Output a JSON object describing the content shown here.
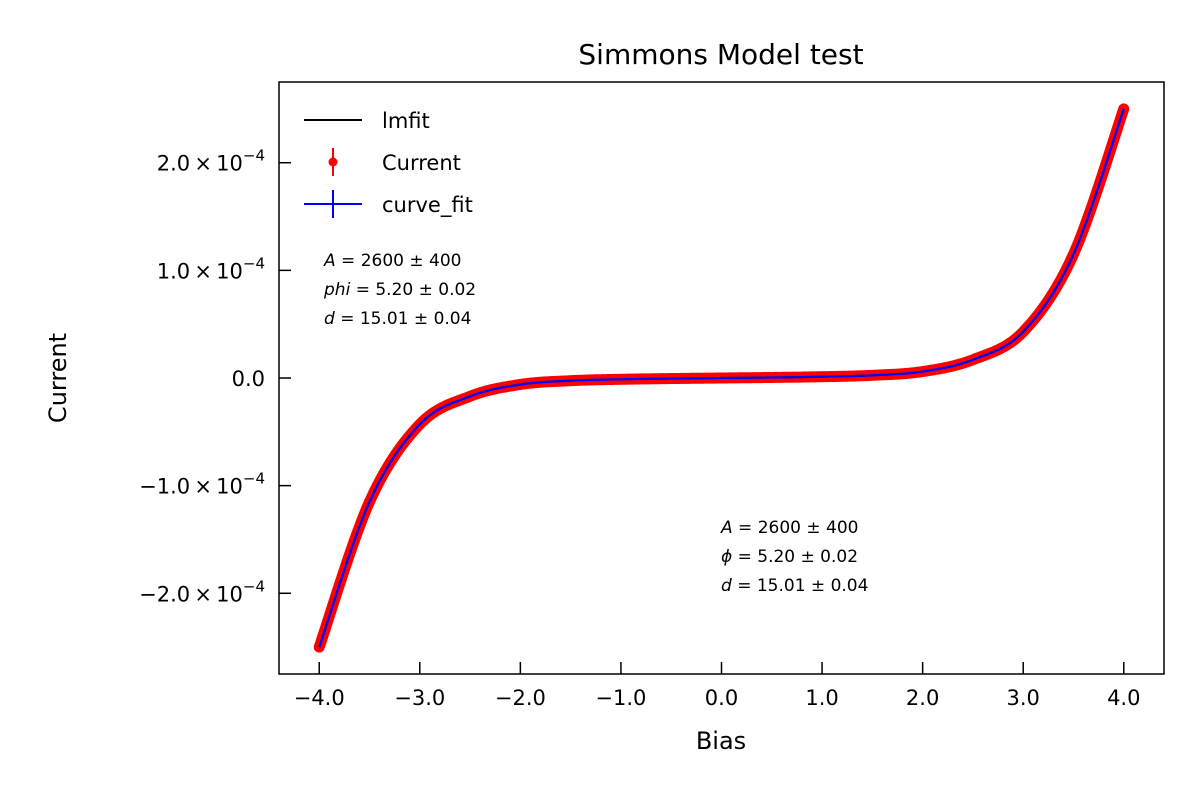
{
  "chart_data": {
    "type": "scatter",
    "title": "Simmons Model test",
    "xlabel": "Bias",
    "ylabel": "Current",
    "xlim": [
      -4.4,
      4.4
    ],
    "ylim": [
      -0.000275,
      0.000275
    ],
    "x_ticks": [
      -4.0,
      -3.0,
      -2.0,
      -1.0,
      0.0,
      1.0,
      2.0,
      3.0,
      4.0
    ],
    "x_tick_labels": [
      "−4.0",
      "−3.0",
      "−2.0",
      "−1.0",
      "0.0",
      "1.0",
      "2.0",
      "3.0",
      "4.0"
    ],
    "y_ticks": [
      -0.0002,
      -0.0001,
      0.0,
      0.0001,
      0.0002
    ],
    "y_tick_labels": [
      {
        "mant": "−2.0 × 10",
        "exp": "−4"
      },
      {
        "mant": "−1.0 × 10",
        "exp": "−4"
      },
      {
        "mant": "0.0",
        "exp": ""
      },
      {
        "mant": "1.0 × 10",
        "exp": "−4"
      },
      {
        "mant": "2.0 × 10",
        "exp": "−4"
      }
    ],
    "grid": false,
    "legend_position": "top-left",
    "series": [
      {
        "name": "lmfit",
        "color": "#000000",
        "style": "line",
        "x": [
          -4.0,
          -3.5,
          -3.0,
          -2.5,
          -2.0,
          -1.5,
          -1.0,
          -0.5,
          0.0,
          0.5,
          1.0,
          1.5,
          2.0,
          2.5,
          3.0,
          3.5,
          4.0
        ],
        "y": [
          -0.00025,
          -0.000115,
          -4.3e-05,
          -1.7e-05,
          -6e-06,
          -2.5e-06,
          -1.2e-06,
          -5e-07,
          0.0,
          5e-07,
          1.2e-06,
          2.5e-06,
          6e-06,
          1.7e-05,
          4.3e-05,
          0.000115,
          0.00025
        ]
      },
      {
        "name": "Current",
        "color": "#ff0000",
        "style": "errorbar-points",
        "x": [
          -4.0,
          -3.5,
          -3.0,
          -2.5,
          -2.0,
          -1.5,
          -1.0,
          -0.5,
          0.0,
          0.5,
          1.0,
          1.5,
          2.0,
          2.5,
          3.0,
          3.5,
          4.0
        ],
        "y": [
          -0.00025,
          -0.000115,
          -4.3e-05,
          -1.7e-05,
          -6e-06,
          -2.5e-06,
          -1.2e-06,
          -5e-07,
          0.0,
          5e-07,
          1.2e-06,
          2.5e-06,
          6e-06,
          1.7e-05,
          4.3e-05,
          0.000115,
          0.00025
        ]
      },
      {
        "name": "curve_fit",
        "color": "#0000ff",
        "style": "line",
        "x": [
          -4.0,
          -3.5,
          -3.0,
          -2.5,
          -2.0,
          -1.5,
          -1.0,
          -0.5,
          0.0,
          0.5,
          1.0,
          1.5,
          2.0,
          2.5,
          3.0,
          3.5,
          4.0
        ],
        "y": [
          -0.00025,
          -0.000115,
          -4.3e-05,
          -1.7e-05,
          -6e-06,
          -2.5e-06,
          -1.2e-06,
          -5e-07,
          0.0,
          5e-07,
          1.2e-06,
          2.5e-06,
          6e-06,
          1.7e-05,
          4.3e-05,
          0.000115,
          0.00025
        ]
      }
    ],
    "annotations": [
      {
        "lines": [
          {
            "var": "A",
            "val": " = 2600 ± 400"
          },
          {
            "var": "phi",
            "val": " = 5.20 ± 0.02"
          },
          {
            "var": "d",
            "val": " = 15.01 ± 0.04"
          }
        ]
      },
      {
        "lines": [
          {
            "var": "A",
            "val": " = 2600 ± 400"
          },
          {
            "var": "ϕ",
            "val": " = 5.20 ± 0.02"
          },
          {
            "var": "d",
            "val": " = 15.01 ± 0.04"
          }
        ]
      }
    ]
  }
}
